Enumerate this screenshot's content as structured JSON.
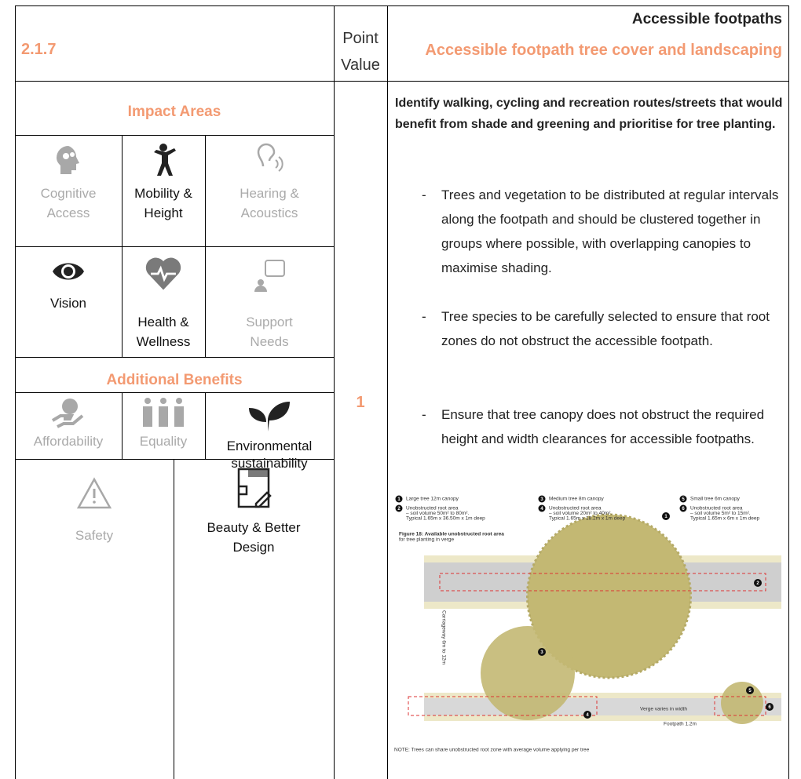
{
  "header": {
    "code": "2.1.7",
    "point_value_label": "Point Value",
    "category": "Accessible footpaths",
    "title": "Accessible footpath tree cover and landscaping"
  },
  "impact_areas": {
    "heading": "Impact Areas",
    "items": [
      {
        "label": "Cognitive Access",
        "active": false
      },
      {
        "label": "Mobility & Height",
        "active": true
      },
      {
        "label": "Hearing & Acoustics",
        "active": false
      },
      {
        "label": "Vision",
        "active": true
      },
      {
        "label": "Health & Wellness",
        "active": true
      },
      {
        "label": "Support Needs",
        "active": false
      }
    ]
  },
  "additional_benefits": {
    "heading": "Additional Benefits",
    "items": [
      {
        "label": "Affordability",
        "active": false
      },
      {
        "label": "Equality",
        "active": false
      },
      {
        "label": "Environmental sustainability",
        "active": true
      },
      {
        "label": "Safety",
        "active": false
      },
      {
        "label": "Beauty & Better Design",
        "active": true
      }
    ]
  },
  "point_value": "1",
  "description": {
    "intro": "Identify walking, cycling and recreation routes/streets that would benefit from shade and greening and prioritise for tree planting.",
    "bullet_marker": "-",
    "bullets": [
      "Trees and vegetation to be distributed at regular intervals along the footpath and should be clustered together in groups where possible, with overlapping canopies to maximise shading.",
      "Tree species to be carefully selected to ensure that root zones do not obstruct the accessible footpath.",
      "Ensure that tree canopy does not obstruct the required height and width clearances for accessible footpaths."
    ]
  },
  "figure": {
    "legend": [
      {
        "number": "1",
        "lines": [
          "Large tree 12m canopy"
        ]
      },
      {
        "number": "2",
        "lines": [
          "Unobstructed root area",
          "– soil volume 50m² to 80m².",
          "Typical 1.65m x 36.50m x 1m deep"
        ]
      },
      {
        "number": "3",
        "lines": [
          "Medium tree 8m canopy"
        ]
      },
      {
        "number": "4",
        "lines": [
          "Unobstructed root area",
          "– soil volume 20m² to 40m².",
          "Typical 1.65m x 18.2m x 1m deep"
        ]
      },
      {
        "number": "5",
        "lines": [
          "Small tree 6m canopy"
        ]
      },
      {
        "number": "6",
        "lines": [
          "Unobstructed root area",
          "– soil volume 5m² to 15m².",
          "Typical 1.65m x 6m x 1m deep"
        ]
      }
    ],
    "caption": [
      "Figure 18: Available unobstructed root area",
      "for tree planting in verge"
    ],
    "carriageway": "Carriageway 6m to 12m",
    "verge": "Verge varies in width",
    "footpath": "Footpath 1.2m",
    "note": "NOTE: Trees can share unobstructed root zone with average volume applying per tree"
  }
}
